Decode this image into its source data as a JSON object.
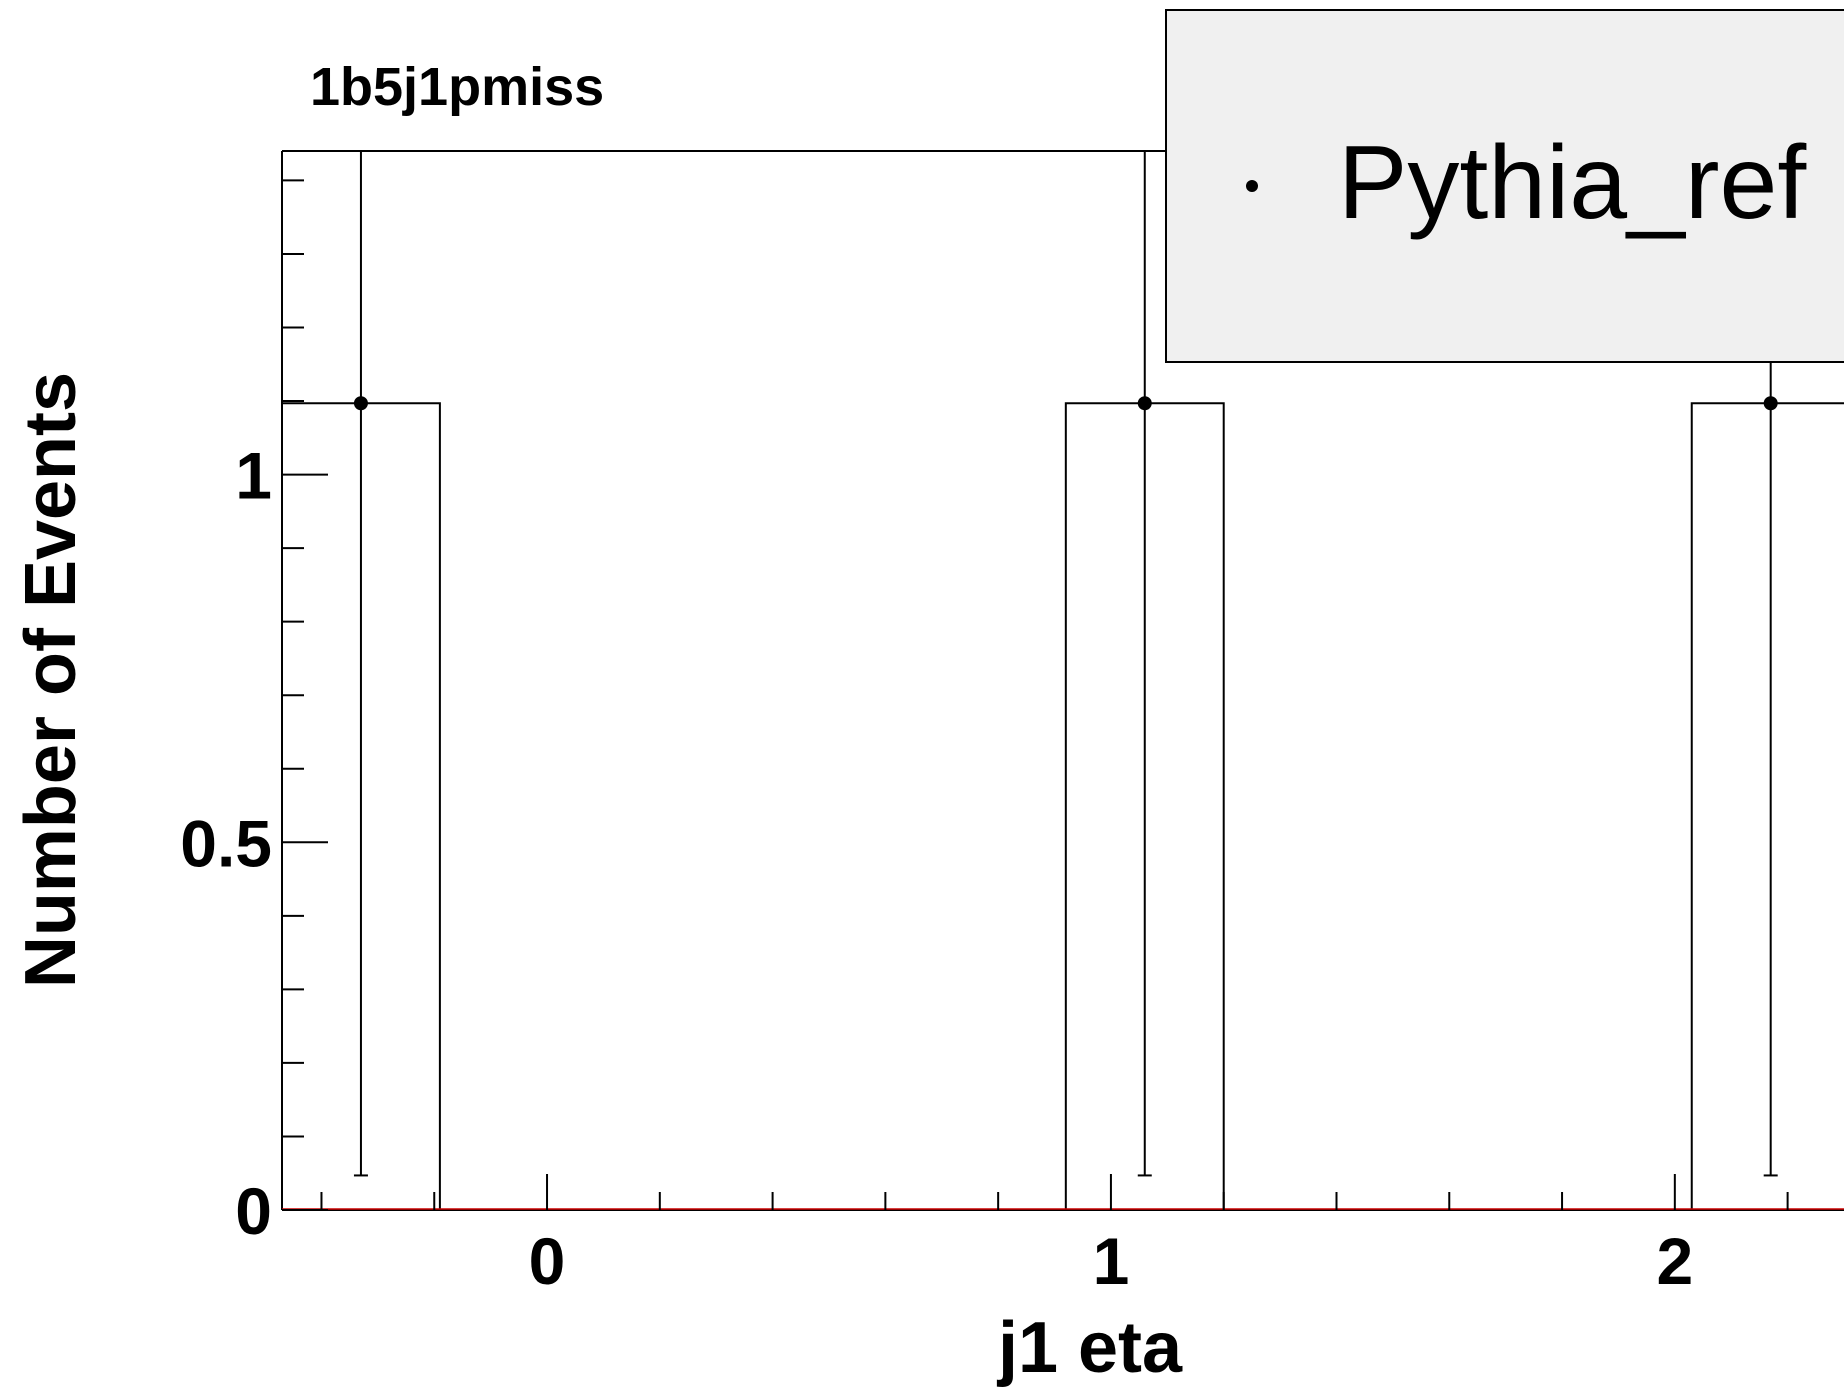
{
  "chart_data": {
    "type": "bar",
    "title": "1b5j1pmiss",
    "xlabel": "j1 eta",
    "ylabel": "Number of Events",
    "xlim": [
      -0.47,
      2.3
    ],
    "ylim": [
      0,
      1.44
    ],
    "x_ticks": [
      {
        "value": 0,
        "label": "0"
      },
      {
        "value": 1,
        "label": "1"
      },
      {
        "value": 2,
        "label": "2"
      }
    ],
    "y_ticks": [
      {
        "value": 0,
        "label": "0"
      },
      {
        "value": 0.5,
        "label": "0.5"
      },
      {
        "value": 1,
        "label": "1"
      }
    ],
    "x_minor_step": 0.2,
    "y_minor_step": 0.1,
    "bin_width": 0.28,
    "grid": false,
    "series": [
      {
        "name": "Pythia_ref",
        "points": [
          {
            "x": -0.33,
            "y": 1.097,
            "err_low": 1.05,
            "err_high": 1.44
          },
          {
            "x": 1.06,
            "y": 1.097,
            "err_low": 1.05,
            "err_high": 1.44
          },
          {
            "x": 2.17,
            "y": 1.097,
            "err_low": 1.05,
            "err_high": 1.44
          }
        ]
      }
    ],
    "legend": {
      "position": "top-right",
      "entries": [
        "Pythia_ref"
      ]
    },
    "colors": {
      "histogram": "#000000",
      "baseline": "#cc0000",
      "legend_fill": "#f0f0f0"
    }
  }
}
